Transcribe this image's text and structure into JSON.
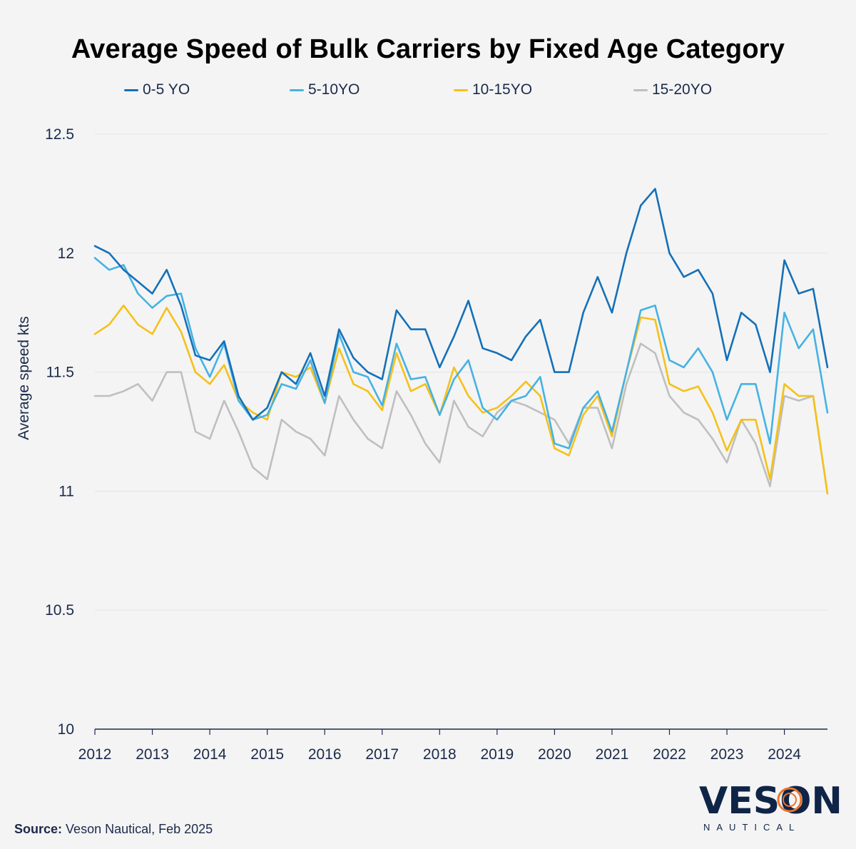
{
  "header": {
    "title": "Average Speed of Bulk Carriers by Fixed Age Category"
  },
  "footer": {
    "source_label": "Source:",
    "source_text": "Veson Nautical, Feb 2025"
  },
  "logo": {
    "word": "VESON",
    "sub": "NAUTICAL",
    "accent_color": "#e8752a"
  },
  "chart_data": {
    "type": "line",
    "title": "Average Speed of Bulk Carriers by Fixed Age Category",
    "xlabel": "",
    "ylabel": "Average speed kts",
    "ylim": [
      10,
      12.5
    ],
    "xlim": [
      2012,
      2024.75
    ],
    "yticks": [
      10,
      10.5,
      11,
      11.5,
      12,
      12.5
    ],
    "ytick_labels": [
      "10",
      "10.5",
      "11",
      "11.5",
      "12",
      "12.5"
    ],
    "xticks": [
      2012,
      2013,
      2014,
      2015,
      2016,
      2017,
      2018,
      2019,
      2020,
      2021,
      2022,
      2023,
      2024
    ],
    "xtick_labels": [
      "2012",
      "2013",
      "2014",
      "2015",
      "2016",
      "2017",
      "2018",
      "2019",
      "2020",
      "2021",
      "2022",
      "2023",
      "2024"
    ],
    "grid": "horizontal",
    "legend_position": "top",
    "x": [
      2012,
      2012.25,
      2012.5,
      2012.75,
      2013,
      2013.25,
      2013.5,
      2013.75,
      2014,
      2014.25,
      2014.5,
      2014.75,
      2015,
      2015.25,
      2015.5,
      2015.75,
      2016,
      2016.25,
      2016.5,
      2016.75,
      2017,
      2017.25,
      2017.5,
      2017.75,
      2018,
      2018.25,
      2018.5,
      2018.75,
      2019,
      2019.25,
      2019.5,
      2019.75,
      2020,
      2020.25,
      2020.5,
      2020.75,
      2021,
      2021.25,
      2021.5,
      2021.75,
      2022,
      2022.25,
      2022.5,
      2022.75,
      2023,
      2023.25,
      2023.5,
      2023.75,
      2024,
      2024.25,
      2024.5,
      2024.75
    ],
    "series": [
      {
        "name": "0-5 YO",
        "color": "#1470b8",
        "values": [
          12.03,
          12.0,
          11.93,
          11.88,
          11.83,
          11.93,
          11.78,
          11.57,
          11.55,
          11.63,
          11.4,
          11.3,
          11.35,
          11.5,
          11.45,
          11.58,
          11.4,
          11.68,
          11.56,
          11.5,
          11.47,
          11.76,
          11.68,
          11.68,
          11.52,
          11.65,
          11.8,
          11.6,
          11.58,
          11.55,
          11.65,
          11.72,
          11.5,
          11.5,
          11.75,
          11.9,
          11.75,
          12.0,
          12.2,
          12.27,
          12.0,
          11.9,
          11.93,
          11.83,
          11.55,
          11.75,
          11.7,
          11.5,
          11.97,
          11.83,
          11.85,
          11.52
        ]
      },
      {
        "name": "5-10YO",
        "color": "#45b2e4",
        "values": [
          11.98,
          11.93,
          11.95,
          11.83,
          11.77,
          11.82,
          11.83,
          11.6,
          11.48,
          11.62,
          11.38,
          11.3,
          11.32,
          11.45,
          11.43,
          11.55,
          11.37,
          11.66,
          11.5,
          11.48,
          11.36,
          11.62,
          11.47,
          11.48,
          11.32,
          11.47,
          11.55,
          11.35,
          11.3,
          11.38,
          11.4,
          11.48,
          11.2,
          11.18,
          11.35,
          11.42,
          11.25,
          11.5,
          11.76,
          11.78,
          11.55,
          11.52,
          11.6,
          11.5,
          11.3,
          11.45,
          11.45,
          11.2,
          11.75,
          11.6,
          11.68,
          11.33
        ]
      },
      {
        "name": "10-15YO",
        "color": "#f5c11a",
        "values": [
          11.66,
          11.7,
          11.78,
          11.7,
          11.66,
          11.77,
          11.67,
          11.5,
          11.45,
          11.53,
          11.38,
          11.33,
          11.3,
          11.5,
          11.48,
          11.52,
          11.37,
          11.6,
          11.45,
          11.42,
          11.34,
          11.58,
          11.42,
          11.45,
          11.32,
          11.52,
          11.4,
          11.33,
          11.35,
          11.4,
          11.46,
          11.4,
          11.18,
          11.15,
          11.32,
          11.4,
          11.23,
          11.5,
          11.73,
          11.72,
          11.45,
          11.42,
          11.44,
          11.33,
          11.17,
          11.3,
          11.3,
          11.05,
          11.45,
          11.4,
          11.4,
          10.99
        ]
      },
      {
        "name": "15-20YO",
        "color": "#bfbfbf",
        "values": [
          11.4,
          11.4,
          11.42,
          11.45,
          11.38,
          11.5,
          11.5,
          11.25,
          11.22,
          11.38,
          11.25,
          11.1,
          11.05,
          11.3,
          11.25,
          11.22,
          11.15,
          11.4,
          11.3,
          11.22,
          11.18,
          11.42,
          11.32,
          11.2,
          11.12,
          11.38,
          11.27,
          11.23,
          11.33,
          11.38,
          11.36,
          11.33,
          11.3,
          11.2,
          11.35,
          11.35,
          11.18,
          11.45,
          11.62,
          11.58,
          11.4,
          11.33,
          11.3,
          11.22,
          11.12,
          11.3,
          11.2,
          11.02,
          11.4,
          11.38,
          11.4,
          10.99
        ]
      }
    ]
  }
}
